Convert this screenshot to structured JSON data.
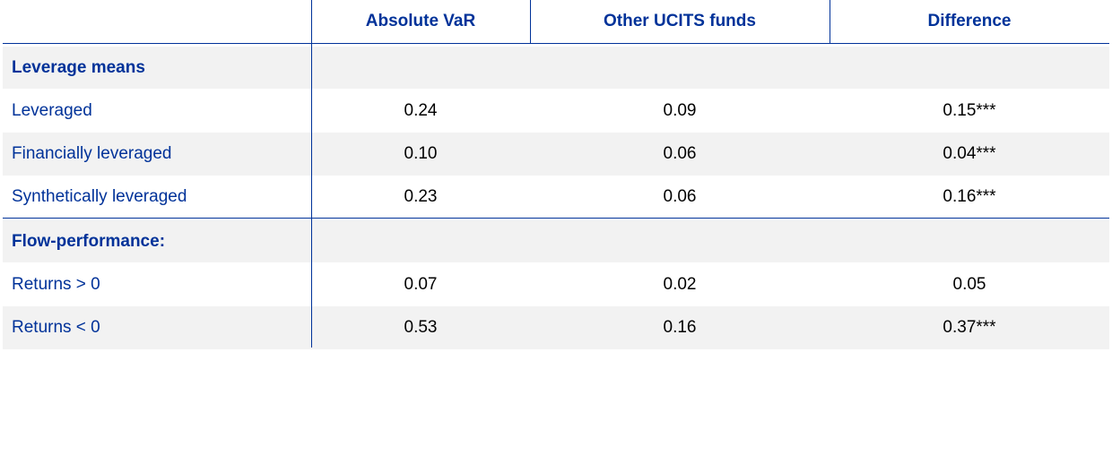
{
  "table": {
    "columns": [
      "Absolute VaR",
      "Other UCITS funds",
      "Difference"
    ],
    "sections": [
      {
        "title": "Leverage means",
        "rows": [
          {
            "label": "Leveraged",
            "values": [
              "0.24",
              "0.09",
              "0.15***"
            ]
          },
          {
            "label": "Financially leveraged",
            "values": [
              "0.10",
              "0.06",
              "0.04***"
            ]
          },
          {
            "label": "Synthetically leveraged",
            "values": [
              "0.23",
              "0.06",
              "0.16***"
            ]
          }
        ]
      },
      {
        "title": "Flow-performance:",
        "rows": [
          {
            "label": "Returns > 0",
            "values": [
              "0.07",
              "0.02",
              "0.05"
            ]
          },
          {
            "label": "Returns < 0",
            "values": [
              "0.53",
              "0.16",
              "0.37***"
            ]
          }
        ]
      }
    ]
  }
}
